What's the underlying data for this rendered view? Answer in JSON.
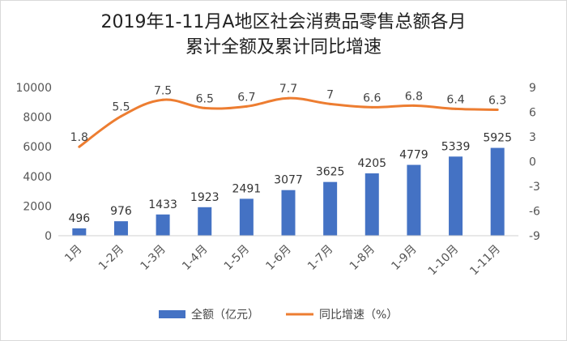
{
  "chart_data": {
    "type": "bar+line",
    "title_line1": "2019年1-11月A地区社会消费品零售总额各月",
    "title_line2": "累计全额及累计同比增速",
    "categories": [
      "1月",
      "1-2月",
      "1-3月",
      "1-4月",
      "1-5月",
      "1-6月",
      "1-7月",
      "1-8月",
      "1-9月",
      "1-10月",
      "1-11月"
    ],
    "series": [
      {
        "name": "全额（亿元）",
        "type": "bar",
        "axis": "left",
        "color": "#4472c4",
        "values": [
          496,
          976,
          1433,
          1923,
          2491,
          3077,
          3625,
          4205,
          4779,
          5339,
          5925
        ],
        "labels": [
          "496",
          "976",
          "1433",
          "1923",
          "2491",
          "3077",
          "3625",
          "4205",
          "4779",
          "5339",
          "5925"
        ]
      },
      {
        "name": "同比增速（%）",
        "type": "line",
        "axis": "right",
        "color": "#ed7d31",
        "values": [
          1.8,
          5.5,
          7.5,
          6.5,
          6.7,
          7.7,
          7.0,
          6.6,
          6.8,
          6.4,
          6.3
        ],
        "labels": [
          "1.8",
          "5.5",
          "7.5",
          "6.5",
          "6.7",
          "7.7",
          "7",
          "6.6",
          "6.8",
          "6.4",
          "6.3"
        ]
      }
    ],
    "y_left": {
      "min": 0,
      "max": 10000,
      "ticks": [
        "0",
        "2000",
        "4000",
        "6000",
        "8000",
        "10000"
      ]
    },
    "y_right": {
      "min": -9,
      "max": 9,
      "ticks": [
        "-9",
        "-6",
        "-3",
        "0",
        "3",
        "6",
        "9"
      ]
    },
    "grid": false,
    "legend": "bottom"
  }
}
